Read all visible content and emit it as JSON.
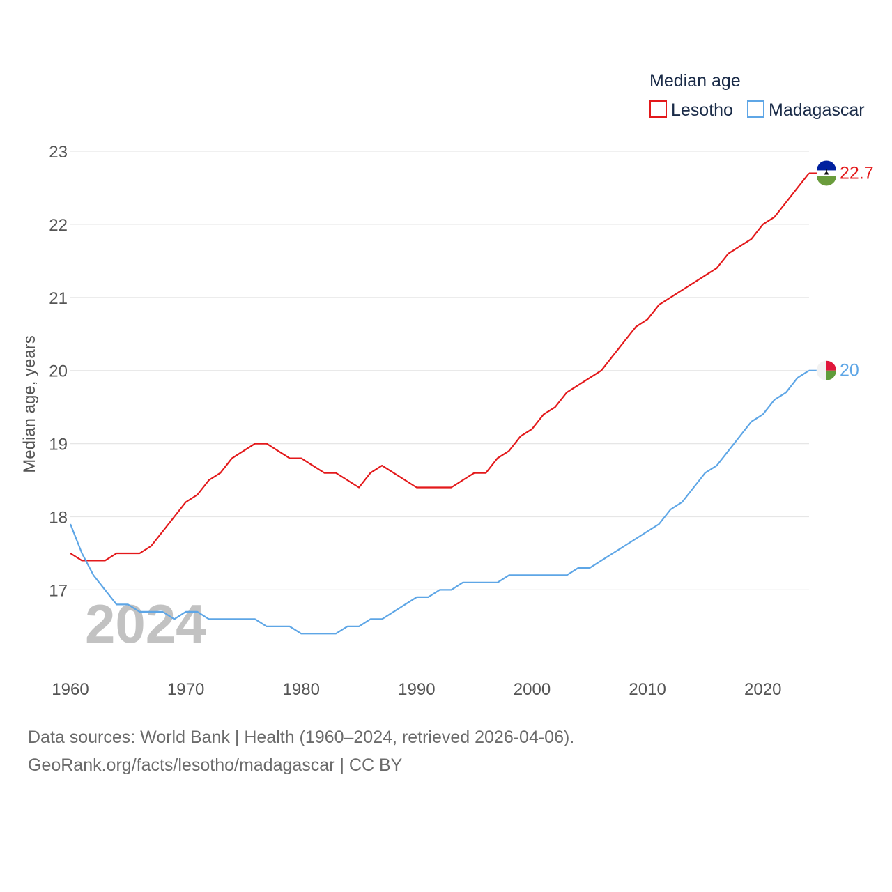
{
  "chart_data": {
    "type": "line",
    "title": "",
    "legend_title": "Median age",
    "xlabel": "",
    "ylabel": "Median age, years",
    "xlim": [
      1960,
      2024
    ],
    "ylim": [
      16.1,
      23.2
    ],
    "x_ticks": [
      1960,
      1970,
      1980,
      1990,
      2000,
      2010,
      2020
    ],
    "y_ticks": [
      17,
      18,
      19,
      20,
      21,
      22,
      23
    ],
    "grid": true,
    "legend_position": "top-right",
    "year_label": "2024",
    "x": [
      1960,
      1961,
      1962,
      1963,
      1964,
      1965,
      1966,
      1967,
      1968,
      1969,
      1970,
      1971,
      1972,
      1973,
      1974,
      1975,
      1976,
      1977,
      1978,
      1979,
      1980,
      1981,
      1982,
      1983,
      1984,
      1985,
      1986,
      1987,
      1988,
      1989,
      1990,
      1991,
      1992,
      1993,
      1994,
      1995,
      1996,
      1997,
      1998,
      1999,
      2000,
      2001,
      2002,
      2003,
      2004,
      2005,
      2006,
      2007,
      2008,
      2009,
      2010,
      2011,
      2012,
      2013,
      2014,
      2015,
      2016,
      2017,
      2018,
      2019,
      2020,
      2021,
      2022,
      2023,
      2024
    ],
    "series": [
      {
        "name": "Lesotho",
        "color": "#e3191b",
        "end_label": "22.7",
        "flag": "lesotho-flag-icon",
        "values": [
          17.5,
          17.4,
          17.4,
          17.4,
          17.5,
          17.5,
          17.5,
          17.6,
          17.8,
          18.0,
          18.2,
          18.3,
          18.5,
          18.6,
          18.8,
          18.9,
          19.0,
          19.0,
          18.9,
          18.8,
          18.8,
          18.7,
          18.6,
          18.6,
          18.5,
          18.4,
          18.6,
          18.7,
          18.6,
          18.5,
          18.4,
          18.4,
          18.4,
          18.4,
          18.5,
          18.6,
          18.6,
          18.8,
          18.9,
          19.1,
          19.2,
          19.4,
          19.5,
          19.7,
          19.8,
          19.9,
          20.0,
          20.2,
          20.4,
          20.6,
          20.7,
          20.9,
          21.0,
          21.1,
          21.2,
          21.3,
          21.4,
          21.6,
          21.7,
          21.8,
          22.0,
          22.1,
          22.3,
          22.5,
          22.7
        ]
      },
      {
        "name": "Madagascar",
        "color": "#5ea6e6",
        "end_label": "20",
        "flag": "madagascar-flag-icon",
        "values": [
          17.9,
          17.5,
          17.2,
          17.0,
          16.8,
          16.8,
          16.7,
          16.7,
          16.7,
          16.6,
          16.7,
          16.7,
          16.6,
          16.6,
          16.6,
          16.6,
          16.6,
          16.5,
          16.5,
          16.5,
          16.4,
          16.4,
          16.4,
          16.4,
          16.5,
          16.5,
          16.6,
          16.6,
          16.7,
          16.8,
          16.9,
          16.9,
          17.0,
          17.0,
          17.1,
          17.1,
          17.1,
          17.1,
          17.2,
          17.2,
          17.2,
          17.2,
          17.2,
          17.2,
          17.3,
          17.3,
          17.4,
          17.5,
          17.6,
          17.7,
          17.8,
          17.9,
          18.1,
          18.2,
          18.4,
          18.6,
          18.7,
          18.9,
          19.1,
          19.3,
          19.4,
          19.6,
          19.7,
          19.9,
          20.0
        ]
      }
    ]
  },
  "footer": {
    "sources": "Data sources: World Bank | Health (1960–2024, retrieved 2026-04-06).",
    "link": "GeoRank.org/facts/lesotho/madagascar | CC BY"
  }
}
